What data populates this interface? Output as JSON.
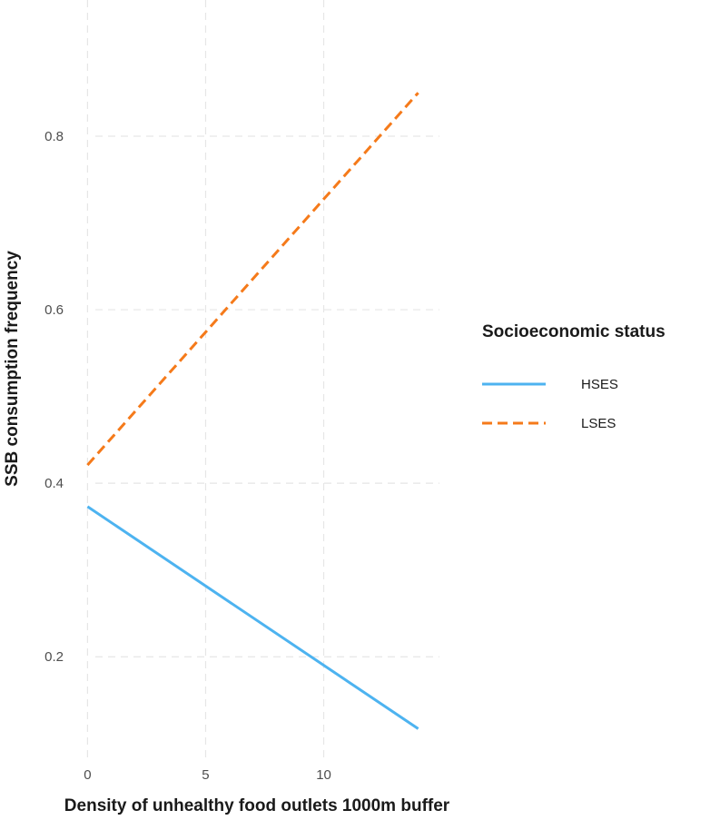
{
  "chart_data": {
    "type": "line",
    "xlabel": "Density of unhealthy food outlets 1000m buffer",
    "ylabel": "SSB consumption frequency",
    "xlim": [
      -1.4,
      14.9
    ],
    "ylim": [
      0.083,
      0.957
    ],
    "x_ticks": [
      0,
      5,
      10
    ],
    "x_tick_labels": [
      "0",
      "5",
      "10"
    ],
    "y_ticks": [
      0.2,
      0.4,
      0.6,
      0.8
    ],
    "y_tick_labels": [
      "0.2",
      "0.4",
      "0.6",
      "0.8"
    ],
    "grid": true,
    "legend": {
      "title": "Socioeconomic status",
      "position": "right"
    },
    "series": [
      {
        "name": "HSES",
        "color": "#4db3f0",
        "linestyle": "solid",
        "x": [
          0,
          14
        ],
        "y": [
          0.373,
          0.117
        ]
      },
      {
        "name": "LSES",
        "color": "#f57a1a",
        "linestyle": "dashed",
        "x": [
          0,
          14
        ],
        "y": [
          0.421,
          0.85
        ]
      }
    ]
  }
}
